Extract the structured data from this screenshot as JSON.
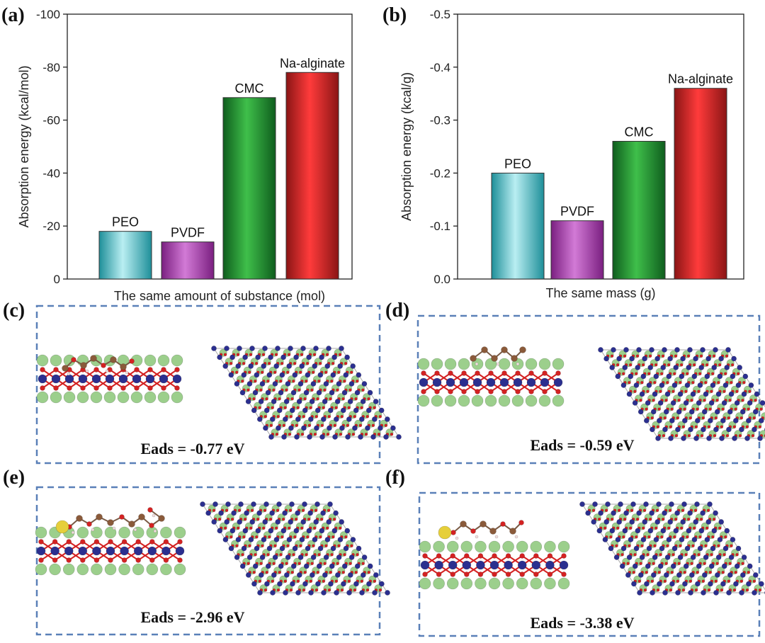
{
  "panels": {
    "a": "(a)",
    "b": "(b)",
    "c": "(c)",
    "d": "(d)",
    "e": "(e)",
    "f": "(f)"
  },
  "chart_data": [
    {
      "id": "a",
      "type": "bar",
      "categories": [
        "PEO",
        "PVDF",
        "CMC",
        "Na-alginate"
      ],
      "values": [
        -18,
        -14,
        -68.5,
        -78
      ],
      "ylabel": "Absorption energy (kcal/mol)",
      "xlabel": "The same amount of substance (mol)",
      "ylim": [
        0,
        -100
      ],
      "ticks": [
        0,
        -20,
        -40,
        -60,
        -80,
        -100
      ],
      "tick_labels": [
        "0",
        "-20",
        "-40",
        "-60",
        "-80",
        "-100"
      ]
    },
    {
      "id": "b",
      "type": "bar",
      "categories": [
        "PEO",
        "PVDF",
        "CMC",
        "Na-alginate"
      ],
      "values": [
        -0.2,
        -0.11,
        -0.26,
        -0.36
      ],
      "ylabel": "Absorption energy (kcal/g)",
      "xlabel": "The same mass (g)",
      "ylim": [
        0,
        -0.5
      ],
      "ticks": [
        0,
        -0.1,
        -0.2,
        -0.3,
        -0.4,
        -0.5
      ],
      "tick_labels": [
        "0.0",
        "-0.1",
        "-0.2",
        "-0.3",
        "-0.4",
        "-0.5"
      ]
    }
  ],
  "bar_colors": {
    "PEO": [
      "#1e8f99",
      "#b9eef2"
    ],
    "PVDF": [
      "#7a1f80",
      "#d27ad6"
    ],
    "CMC": [
      "#0f5e1e",
      "#3fbf4a"
    ],
    "Na-alginate": [
      "#8b1515",
      "#ff3b3b"
    ]
  },
  "structures": [
    {
      "id": "c",
      "eads": "Eads = -0.77 eV"
    },
    {
      "id": "d",
      "eads": "Eads = -0.59 eV"
    },
    {
      "id": "e",
      "eads": "Eads = -2.96 eV"
    },
    {
      "id": "f",
      "eads": "Eads = -3.38 eV"
    }
  ],
  "atom_colors": {
    "green": "#9ccf8c",
    "blue": "#2b2f8f",
    "red": "#d42222",
    "brown": "#8a5a3a",
    "white": "#f1dede",
    "yellow": "#e6cf3a"
  }
}
